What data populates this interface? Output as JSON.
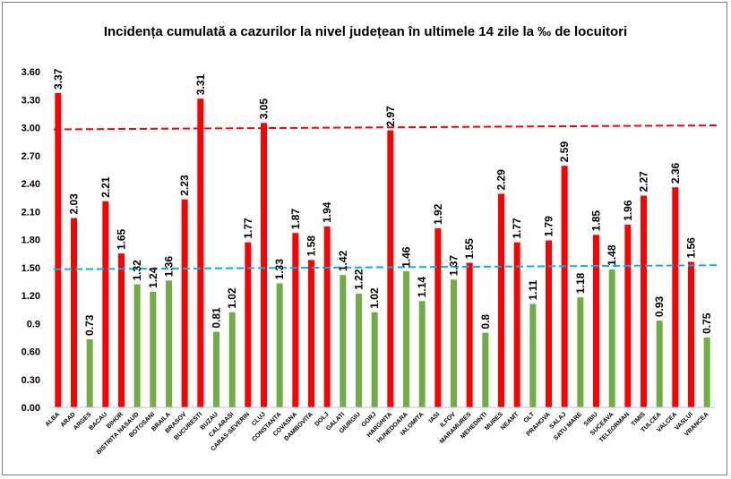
{
  "chart_data": {
    "type": "bar",
    "title": "Incidența cumulată a cazurilor la nivel județean în ultimele 14 zile la ‰ de locuitori",
    "xlabel": "",
    "ylabel": "",
    "ylim": [
      0,
      3.6
    ],
    "yticks": [
      "0.00",
      "0.30",
      "0.60",
      "0.9",
      "1.20",
      "1.50",
      "1.80",
      "2.10",
      "2.40",
      "2.70",
      "3.00",
      "3.30",
      "3.60"
    ],
    "categories": [
      "ALBA",
      "ARAD",
      "ARGES",
      "BACAU",
      "BIHOR",
      "BISTRITA NASAUD",
      "BOTOSANI",
      "BRAILA",
      "BRASOV",
      "BUCURESTI",
      "BUZAU",
      "CALARASI",
      "CARAS-SEVERIN",
      "CLUJ",
      "CONSTANTA",
      "COVASNA",
      "DAMBOVITA",
      "DOLJ",
      "GALATI",
      "GIURGIU",
      "GORJ",
      "HARGHITA",
      "HUNEDOARA",
      "IALOMITA",
      "IASI",
      "ILFOV",
      "MARAMURES",
      "MEHEDINTI",
      "MURES",
      "NEAMT",
      "OLT",
      "PRAHOVA",
      "SALAJ",
      "SATU MARE",
      "SIBIU",
      "SUCEAVA",
      "TELEORMAN",
      "TIMIS",
      "TULCEA",
      "VALCEA",
      "VASLUI",
      "VRANCEA"
    ],
    "values": [
      3.37,
      2.03,
      0.73,
      2.21,
      1.65,
      1.32,
      1.24,
      1.36,
      2.23,
      3.31,
      0.81,
      1.02,
      1.77,
      3.05,
      1.33,
      1.87,
      1.58,
      1.94,
      1.42,
      1.22,
      1.02,
      2.97,
      1.46,
      1.14,
      1.92,
      1.37,
      1.55,
      0.8,
      2.29,
      1.77,
      1.11,
      1.79,
      2.59,
      1.18,
      1.85,
      1.48,
      1.96,
      2.27,
      0.93,
      2.36,
      1.56,
      0.75
    ],
    "value_labels": [
      "3.37",
      "2.03",
      "0.73",
      "2.21",
      "1.65",
      "1.32",
      "1.24",
      "1.36",
      "2.23",
      "3.31",
      "0.81",
      "1.02",
      "1.77",
      "3.05",
      "1.33",
      "1.87",
      "1.58",
      "1.94",
      "1.42",
      "1.22",
      "1.02",
      "2.97",
      "1.46",
      "1.14",
      "1.92",
      "1.37",
      "1.55",
      "0.8",
      "2.29",
      "1.77",
      "1.11",
      "1.79",
      "2.59",
      "1.18",
      "1.85",
      "1.48",
      "1.96",
      "2.27",
      "0.93",
      "2.36",
      "1.56",
      "0.75"
    ],
    "threshold_high": 3.0,
    "threshold_low": 1.5,
    "colors": {
      "above_threshold": "#ff0000",
      "below_threshold": "#70ad47",
      "high_line": "#ff0000",
      "low_line": "#00b0f0"
    },
    "grid": false,
    "legend": "none"
  }
}
